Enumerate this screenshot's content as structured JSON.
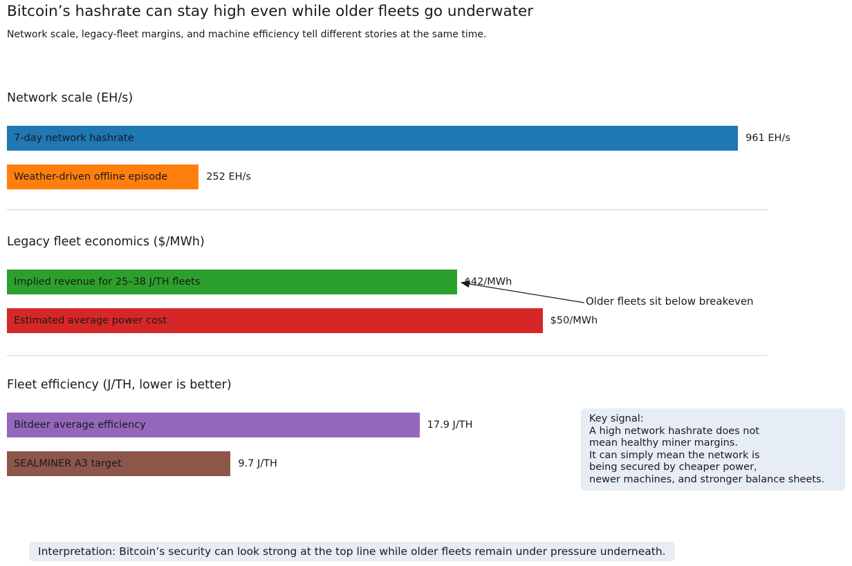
{
  "header": {
    "title": "Bitcoin’s hashrate can stay high even while older fleets go underwater",
    "subtitle": "Network scale, legacy-fleet margins, and machine efficiency tell different stories at the same time."
  },
  "chart_data": {
    "type": "bar",
    "orientation": "horizontal",
    "grid": false,
    "legend": "none",
    "sections": [
      {
        "heading": "Network scale (EH/s)",
        "unit": "EH/s",
        "axis_max": 1000,
        "bars": [
          {
            "label": "7-day network hashrate",
            "value": 961,
            "value_label": "961 EH/s",
            "color": "#1f77b4"
          },
          {
            "label": "Weather-driven offline episode",
            "value": 252,
            "value_label": "252 EH/s",
            "color": "#ff7f0e"
          }
        ]
      },
      {
        "heading": "Legacy fleet economics ($/MWh)",
        "unit": "$/MWh",
        "axis_max": 71,
        "bars": [
          {
            "label": "Implied revenue for 25–38 J/TH fleets",
            "value": 42,
            "value_label": "$42/MWh",
            "color": "#2ca02c"
          },
          {
            "label": "Estimated average power cost",
            "value": 50,
            "value_label": "$50/MWh",
            "color": "#d62728"
          }
        ]
      },
      {
        "heading": "Fleet efficiency (J/TH, lower is better)",
        "unit": "J/TH",
        "axis_max": 33,
        "bars": [
          {
            "label": "Bitdeer average efficiency",
            "value": 17.9,
            "value_label": "17.9 J/TH",
            "color": "#9467bd"
          },
          {
            "label": "SEALMINER A3 target",
            "value": 9.7,
            "value_label": "9.7 J/TH",
            "color": "#8c564b"
          }
        ]
      }
    ],
    "annotation": {
      "text": "Older fleets sit below breakeven",
      "points_to_value": "$42/MWh",
      "points_to_bar": "Implied revenue for 25–38 J/TH fleets"
    }
  },
  "key_signal": {
    "text": "Key signal:\nA high network hashrate does not\nmean healthy miner margins.\nIt can simply mean the network is\nbeing secured by cheaper power,\nnewer machines, and stronger balance sheets."
  },
  "interpretation": {
    "text": "Interpretation: Bitcoin’s security can look strong at the top line while older fleets remain under pressure underneath."
  }
}
